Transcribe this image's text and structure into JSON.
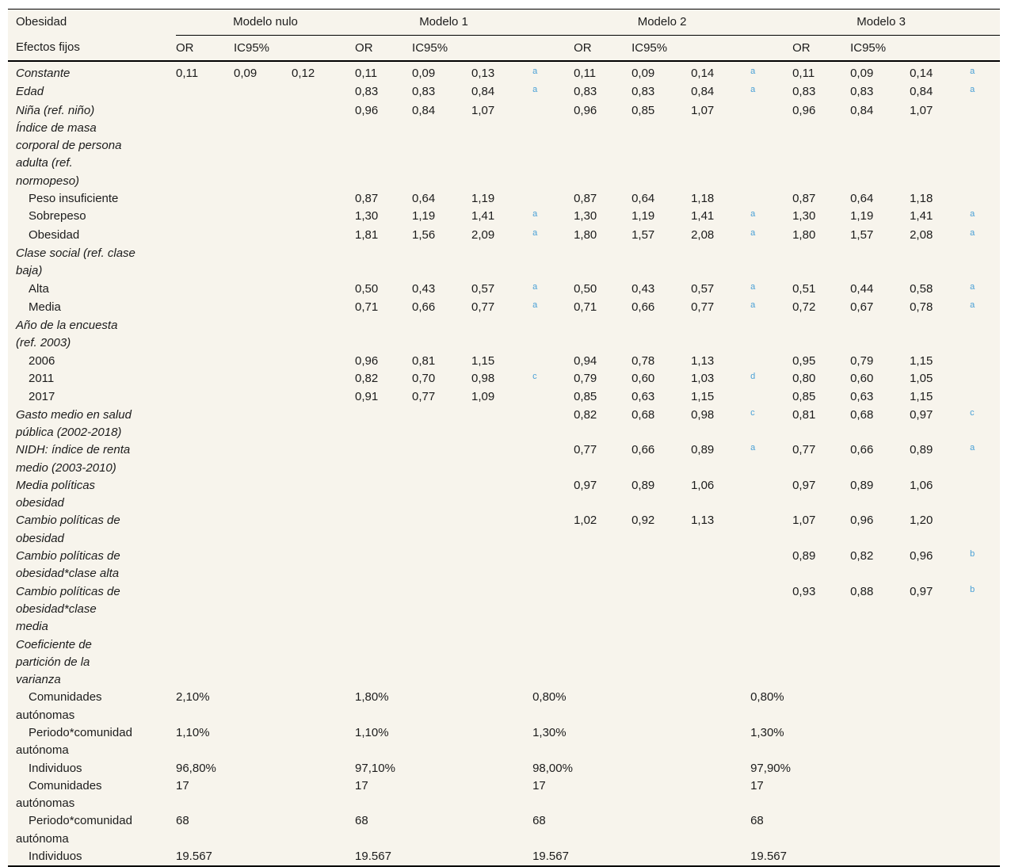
{
  "table": {
    "corner": {
      "line1": "Obesidad",
      "line2": "Efectos fijos"
    },
    "models": [
      "Modelo nulo",
      "Modelo 1",
      "Modelo 2",
      "Modelo 3"
    ],
    "col_headers": {
      "or": "OR",
      "ci": "IC95%"
    },
    "colors": {
      "background": "#f7f4ec",
      "text": "#1c1c1c",
      "superscript": "#4aa0d6",
      "rule": "#000000"
    },
    "rows": [
      {
        "label": "Constante",
        "category": true,
        "cells": [
          "0,11",
          "0,09",
          "0,12",
          "0,11",
          "0,09",
          "0,13",
          "a",
          "0,11",
          "0,09",
          "0,14",
          "a",
          "0,11",
          "0,09",
          "0,14",
          "a"
        ]
      },
      {
        "label": "Edad",
        "category": true,
        "cells": [
          "",
          "",
          "",
          "0,83",
          "0,83",
          "0,84",
          "a",
          "0,83",
          "0,83",
          "0,84",
          "a",
          "0,83",
          "0,83",
          "0,84",
          "a"
        ]
      },
      {
        "label": "Niña (ref. niño)",
        "category": true,
        "cells": [
          "",
          "",
          "",
          "0,96",
          "0,84",
          "1,07",
          "",
          "0,96",
          "0,85",
          "1,07",
          "",
          "0,96",
          "0,84",
          "1,07",
          ""
        ]
      },
      {
        "label": "Índice de masa\ncorporal de persona\nadulta (ref.\nnormopeso)",
        "category": true,
        "cells": [
          "",
          "",
          "",
          "",
          "",
          "",
          "",
          "",
          "",
          "",
          "",
          "",
          "",
          "",
          ""
        ]
      },
      {
        "label": "Peso insuficiente",
        "category": false,
        "cells": [
          "",
          "",
          "",
          "0,87",
          "0,64",
          "1,19",
          "",
          "0,87",
          "0,64",
          "1,18",
          "",
          "0,87",
          "0,64",
          "1,18",
          ""
        ]
      },
      {
        "label": "Sobrepeso",
        "category": false,
        "cells": [
          "",
          "",
          "",
          "1,30",
          "1,19",
          "1,41",
          "a",
          "1,30",
          "1,19",
          "1,41",
          "a",
          "1,30",
          "1,19",
          "1,41",
          "a"
        ]
      },
      {
        "label": "Obesidad",
        "category": false,
        "cells": [
          "",
          "",
          "",
          "1,81",
          "1,56",
          "2,09",
          "a",
          "1,80",
          "1,57",
          "2,08",
          "a",
          "1,80",
          "1,57",
          "2,08",
          "a"
        ]
      },
      {
        "label": "Clase social (ref. clase\nbaja)",
        "category": true,
        "cells": [
          "",
          "",
          "",
          "",
          "",
          "",
          "",
          "",
          "",
          "",
          "",
          "",
          "",
          "",
          ""
        ]
      },
      {
        "label": "Alta",
        "category": false,
        "cells": [
          "",
          "",
          "",
          "0,50",
          "0,43",
          "0,57",
          "a",
          "0,50",
          "0,43",
          "0,57",
          "a",
          "0,51",
          "0,44",
          "0,58",
          "a"
        ]
      },
      {
        "label": "Media",
        "category": false,
        "cells": [
          "",
          "",
          "",
          "0,71",
          "0,66",
          "0,77",
          "a",
          "0,71",
          "0,66",
          "0,77",
          "a",
          "0,72",
          "0,67",
          "0,78",
          "a"
        ]
      },
      {
        "label": "Año de la encuesta\n(ref. 2003)",
        "category": true,
        "cells": [
          "",
          "",
          "",
          "",
          "",
          "",
          "",
          "",
          "",
          "",
          "",
          "",
          "",
          "",
          ""
        ]
      },
      {
        "label": "2006",
        "category": false,
        "cells": [
          "",
          "",
          "",
          "0,96",
          "0,81",
          "1,15",
          "",
          "0,94",
          "0,78",
          "1,13",
          "",
          "0,95",
          "0,79",
          "1,15",
          ""
        ]
      },
      {
        "label": "2011",
        "category": false,
        "cells": [
          "",
          "",
          "",
          "0,82",
          "0,70",
          "0,98",
          "c",
          "0,79",
          "0,60",
          "1,03",
          "d",
          "0,80",
          "0,60",
          "1,05",
          ""
        ]
      },
      {
        "label": "2017",
        "category": false,
        "cells": [
          "",
          "",
          "",
          "0,91",
          "0,77",
          "1,09",
          "",
          "0,85",
          "0,63",
          "1,15",
          "",
          "0,85",
          "0,63",
          "1,15",
          ""
        ]
      },
      {
        "label": "Gasto medio en salud\npública (2002-2018)",
        "category": true,
        "cells": [
          "",
          "",
          "",
          "",
          "",
          "",
          "",
          "0,82",
          "0,68",
          "0,98",
          "c",
          "0,81",
          "0,68",
          "0,97",
          "c"
        ]
      },
      {
        "label": "NIDH: índice de renta\nmedio (2003-2010)",
        "category": true,
        "cells": [
          "",
          "",
          "",
          "",
          "",
          "",
          "",
          "0,77",
          "0,66",
          "0,89",
          "a",
          "0,77",
          "0,66",
          "0,89",
          "a"
        ]
      },
      {
        "label": "Media políticas\nobesidad",
        "category": true,
        "cells": [
          "",
          "",
          "",
          "",
          "",
          "",
          "",
          "0,97",
          "0,89",
          "1,06",
          "",
          "0,97",
          "0,89",
          "1,06",
          ""
        ]
      },
      {
        "label": "Cambio políticas de\nobesidad",
        "category": true,
        "cells": [
          "",
          "",
          "",
          "",
          "",
          "",
          "",
          "1,02",
          "0,92",
          "1,13",
          "",
          "1,07",
          "0,96",
          "1,20",
          ""
        ]
      },
      {
        "label": "Cambio políticas de\nobesidad*clase alta",
        "category": true,
        "cells": [
          "",
          "",
          "",
          "",
          "",
          "",
          "",
          "",
          "",
          "",
          "",
          "0,89",
          "0,82",
          "0,96",
          "b"
        ]
      },
      {
        "label": "Cambio políticas de\nobesidad*clase\nmedia",
        "category": true,
        "cells": [
          "",
          "",
          "",
          "",
          "",
          "",
          "",
          "",
          "",
          "",
          "",
          "0,93",
          "0,88",
          "0,97",
          "b"
        ]
      },
      {
        "label": "Coeficiente de\npartición de la\nvarianza",
        "category": true,
        "cells": [
          "",
          "",
          "",
          "",
          "",
          "",
          "",
          "",
          "",
          "",
          "",
          "",
          "",
          "",
          ""
        ]
      }
    ],
    "footer_rows": [
      {
        "label": "Comunidades\nautónomas",
        "values": [
          "2,10%",
          "1,80%",
          "0,80%",
          "0,80%"
        ]
      },
      {
        "label": "Periodo*comunidad\nautónoma",
        "values": [
          "1,10%",
          "1,10%",
          "1,30%",
          "1,30%"
        ]
      },
      {
        "label": "Individuos",
        "values": [
          "96,80%",
          "97,10%",
          "98,00%",
          "97,90%"
        ]
      },
      {
        "label": "Comunidades\nautónomas",
        "values": [
          "17",
          "17",
          "17",
          "17"
        ]
      },
      {
        "label": "Periodo*comunidad\nautónoma",
        "values": [
          "68",
          "68",
          "68",
          "68"
        ]
      },
      {
        "label": "Individuos",
        "values": [
          "19.567",
          "19.567",
          "19.567",
          "19.567"
        ]
      }
    ]
  }
}
